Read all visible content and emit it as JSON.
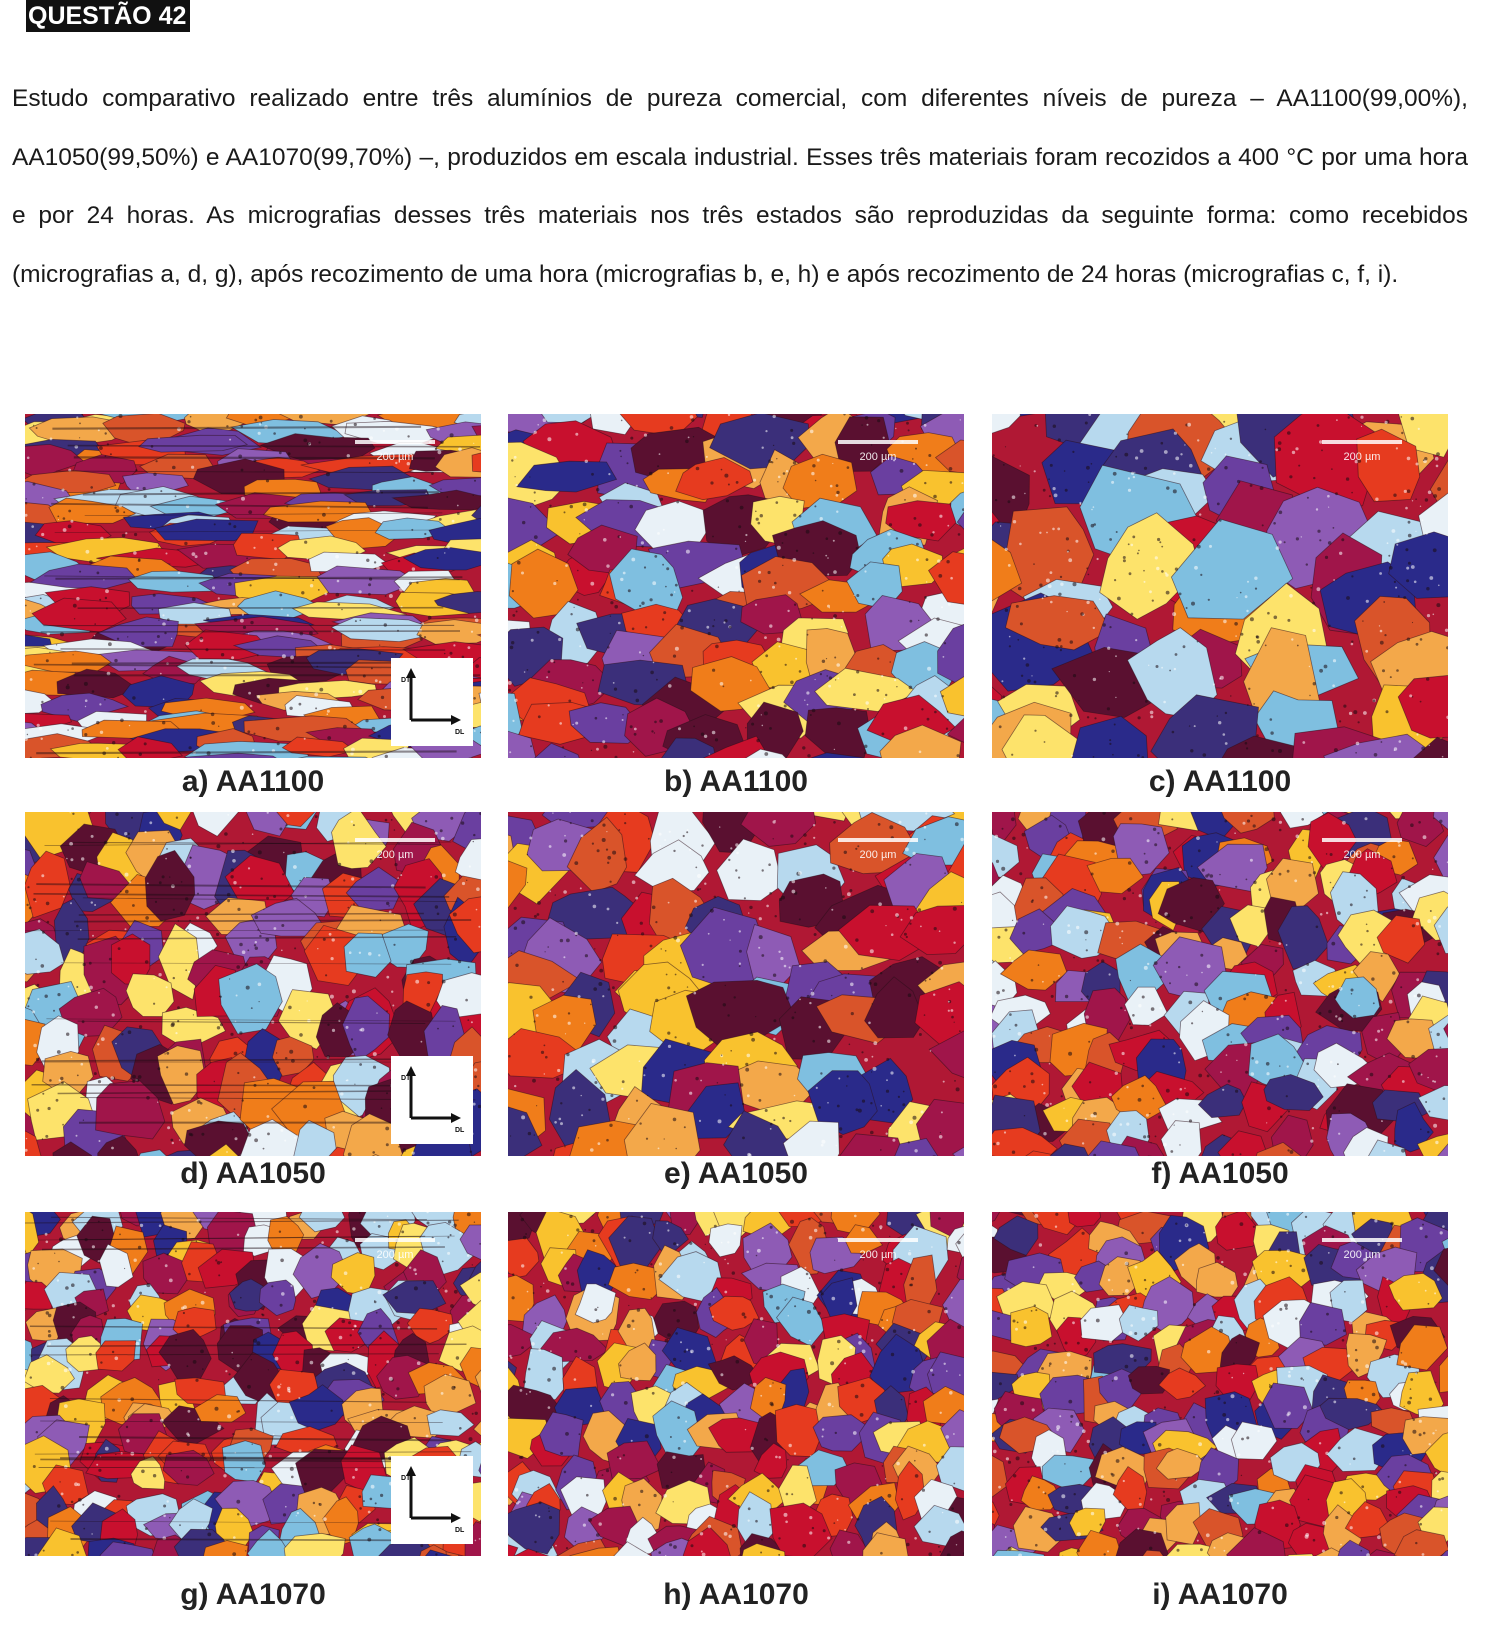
{
  "question": {
    "label": "QUESTÃO 42"
  },
  "statement": "Estudo comparativo realizado entre três alumínios de pureza comercial, com diferentes níveis de pureza – AA1100(99,00%), AA1050(99,50%) e AA1070(99,70%) –, produzidos em escala industrial. Esses três materiais foram recozidos a 400 °C por uma hora e por 24 horas. As micrografias desses três materiais nos três estados são reproduzidas da seguinte forma: como recebidos (micrografias a, d, g), após recozimento de uma hora (micrografias b, e, h) e após recozimento de 24 horas (micrografias c, f, i).",
  "palette": [
    "#c8102e",
    "#e63b1f",
    "#f07d1a",
    "#f9c22e",
    "#fde36b",
    "#2a2a8a",
    "#3b2f7a",
    "#6a3fa0",
    "#8e5bb5",
    "#5a1030",
    "#a0154a",
    "#7fbfe0",
    "#b7d9ee",
    "#e9f1f7",
    "#d9542a",
    "#f3a84a"
  ],
  "micrographs": [
    {
      "caption": "a) AA1100",
      "scale_label": "200 µm",
      "axes": {
        "vertical": "DT",
        "horizontal": "DL"
      }
    },
    {
      "caption": "b) AA1100",
      "scale_label": "200 µm"
    },
    {
      "caption": "c) AA1100",
      "scale_label": "200 µm"
    },
    {
      "caption": "d) AA1050",
      "scale_label": "200 µm",
      "axes": {
        "vertical": "DT",
        "horizontal": "DL"
      }
    },
    {
      "caption": "e) AA1050",
      "scale_label": "200 µm"
    },
    {
      "caption": "f) AA1050",
      "scale_label": "200 µm"
    },
    {
      "caption": "g) AA1070",
      "scale_label": "200 µm",
      "axes": {
        "vertical": "DT",
        "horizontal": "DL"
      }
    },
    {
      "caption": "h) AA1070",
      "scale_label": "200 µm"
    },
    {
      "caption": "i) AA1070",
      "scale_label": "200 µm"
    }
  ]
}
